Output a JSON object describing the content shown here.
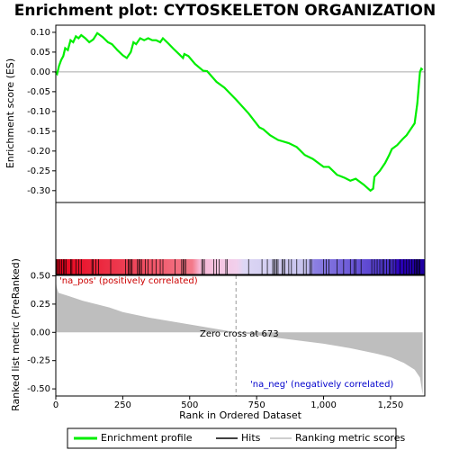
{
  "chart_data": {
    "type": "gsea",
    "title": "Enrichment plot: CYTOSKELETON ORGANIZATION",
    "ylabel": "Enrichment score (ES)",
    "ylabel2": "Ranked list metric (PreRanked)",
    "xlabel": "Rank in Ordered Dataset",
    "annotations": [
      "'na_pos' (positively correlated)",
      "Zero cross at 673",
      "'na_neg' (negatively correlated)"
    ],
    "zero_cross": 673,
    "legend": [
      "Enrichment profile",
      "Hits",
      "Ranking metric scores"
    ],
    "color": "#00ee00",
    "xlim": [
      0,
      1378
    ],
    "xticks": [
      0,
      250,
      500,
      750,
      {
        "value": 1000,
        "label": "1,000"
      },
      {
        "value": 1250,
        "label": "1,250"
      }
    ],
    "ylim": [
      -0.33,
      0.118
    ],
    "yticks": [
      {
        "value": 0.1,
        "label": "0.10"
      },
      0.05,
      {
        "value": 0,
        "label": "0.00"
      },
      -0.05,
      {
        "value": -0.1,
        "label": "-0.10"
      },
      -0.15,
      {
        "value": -0.2,
        "label": "-0.20"
      },
      -0.25,
      {
        "value": -0.3,
        "label": "-0.30"
      }
    ],
    "es": {
      "x": [
        0,
        5,
        12,
        20,
        28,
        35,
        45,
        55,
        65,
        75,
        85,
        95,
        110,
        125,
        140,
        155,
        175,
        195,
        210,
        230,
        250,
        265,
        280,
        290,
        300,
        315,
        330,
        345,
        360,
        375,
        390,
        400,
        420,
        440,
        460,
        475,
        480,
        495,
        520,
        550,
        565,
        600,
        630,
        673,
        720,
        760,
        775,
        800,
        830,
        870,
        900,
        930,
        960,
        1000,
        1020,
        1050,
        1080,
        1100,
        1120,
        1150,
        1175,
        1185,
        1190,
        1210,
        1230,
        1245,
        1255,
        1275,
        1295,
        1310,
        1325,
        1340,
        1350,
        1355,
        1360,
        1365,
        1370
      ],
      "values": [
        0,
        -0.005,
        0.015,
        0.03,
        0.04,
        0.06,
        0.055,
        0.08,
        0.075,
        0.09,
        0.085,
        0.093,
        0.085,
        0.075,
        0.082,
        0.098,
        0.088,
        0.075,
        0.07,
        0.055,
        0.042,
        0.035,
        0.05,
        0.075,
        0.07,
        0.085,
        0.08,
        0.085,
        0.08,
        0.08,
        0.075,
        0.085,
        0.072,
        0.058,
        0.045,
        0.035,
        0.045,
        0.04,
        0.02,
        0.003,
        0.002,
        -0.025,
        -0.04,
        -0.07,
        -0.105,
        -0.14,
        -0.145,
        -0.16,
        -0.172,
        -0.18,
        -0.19,
        -0.21,
        -0.22,
        -0.24,
        -0.24,
        -0.26,
        -0.268,
        -0.275,
        -0.27,
        -0.285,
        -0.3,
        -0.295,
        -0.265,
        -0.25,
        -0.23,
        -0.21,
        -0.195,
        -0.185,
        -0.17,
        -0.16,
        -0.145,
        -0.13,
        -0.08,
        -0.04,
        0,
        0.008,
        0.005
      ]
    },
    "hits": [
      3,
      8,
      15,
      22,
      28,
      33,
      38,
      55,
      60,
      75,
      85,
      95,
      135,
      140,
      150,
      160,
      205,
      260,
      270,
      275,
      280,
      285,
      305,
      310,
      315,
      320,
      335,
      345,
      360,
      375,
      390,
      400,
      445,
      470,
      475,
      480,
      485,
      545,
      550,
      555,
      590,
      600,
      610,
      635,
      640,
      720,
      770,
      790,
      810,
      815,
      820,
      825,
      830,
      845,
      850,
      855,
      870,
      880,
      900,
      925,
      935,
      950,
      955,
      1000,
      1010,
      1020,
      1050,
      1075,
      1100,
      1115,
      1120,
      1140,
      1180,
      1190,
      1200,
      1210,
      1220,
      1225,
      1235,
      1245,
      1250,
      1260,
      1270,
      1285,
      1300,
      1310,
      1320,
      1330,
      1340,
      1345,
      1350,
      1355,
      1360
    ],
    "metric_color": "#bebebe",
    "y2lim": [
      -0.563,
      0.504
    ],
    "y2ticks": [
      {
        "value": 0.5,
        "label": "0.50"
      },
      0.25,
      {
        "value": 0,
        "label": "0.00"
      },
      -0.25,
      {
        "value": -0.5,
        "label": "-0.50"
      }
    ],
    "metric": {
      "x": [
        0,
        3,
        10,
        50,
        100,
        150,
        200,
        250,
        350,
        450,
        550,
        673,
        800,
        900,
        1000,
        1100,
        1200,
        1250,
        1300,
        1340,
        1360,
        1370
      ],
      "values": [
        0.47,
        0.4,
        0.35,
        0.32,
        0.28,
        0.25,
        0.22,
        0.18,
        0.13,
        0.09,
        0.05,
        0,
        -0.04,
        -0.07,
        -0.1,
        -0.14,
        -0.19,
        -0.22,
        -0.27,
        -0.33,
        -0.4,
        -0.55
      ]
    }
  }
}
